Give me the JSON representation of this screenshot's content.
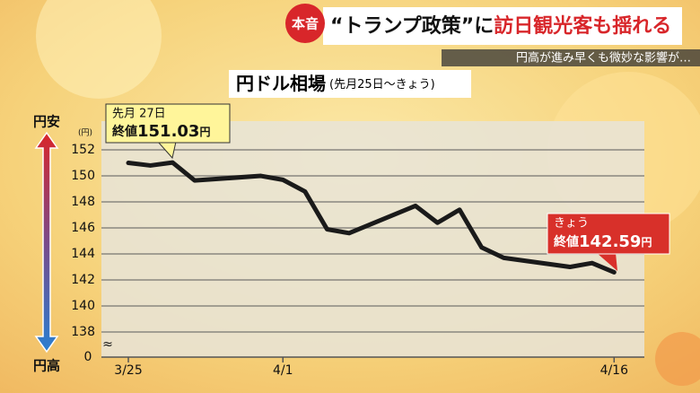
{
  "header": {
    "badge": "本音",
    "title": [
      "“トランプ政策”に",
      "訪日観光客も揺れる"
    ],
    "subtitle": "円高が進み早くも微妙な影響が…"
  },
  "chart_data": {
    "type": "line",
    "title": "円ドル相場",
    "subtitle": "(先月25日〜きょう)",
    "y_unit": "(円)",
    "y_top_label": "円安",
    "y_bottom_label": "円高",
    "y_origin_label": "0",
    "x": [
      0,
      1,
      2,
      3,
      6,
      7,
      8,
      9,
      10,
      13,
      14,
      15,
      16,
      17,
      20,
      21,
      22
    ],
    "values": [
      151.0,
      150.8,
      151.03,
      149.65,
      150.0,
      149.7,
      148.8,
      145.9,
      145.6,
      147.7,
      146.4,
      147.4,
      144.5,
      143.7,
      143.0,
      143.3,
      142.59
    ],
    "color": "#1a1a1a",
    "xlim": [
      -1.22,
      23.37
    ],
    "xticks": [
      {
        "value": 0,
        "label": "3/25"
      },
      {
        "value": 7,
        "label": "4/1"
      },
      {
        "value": 22,
        "label": "4/16"
      }
    ],
    "ylim": [
      136.07,
      154.21
    ],
    "yticks": [
      138,
      140,
      142,
      144,
      146,
      148,
      150,
      152
    ],
    "grid": true,
    "annotations": [
      {
        "label": "先月 27日",
        "text": "終値",
        "value": 151.03,
        "unit": "円"
      },
      {
        "label": "きょう",
        "text": "終値",
        "value": 142.59,
        "unit": "円"
      }
    ]
  }
}
